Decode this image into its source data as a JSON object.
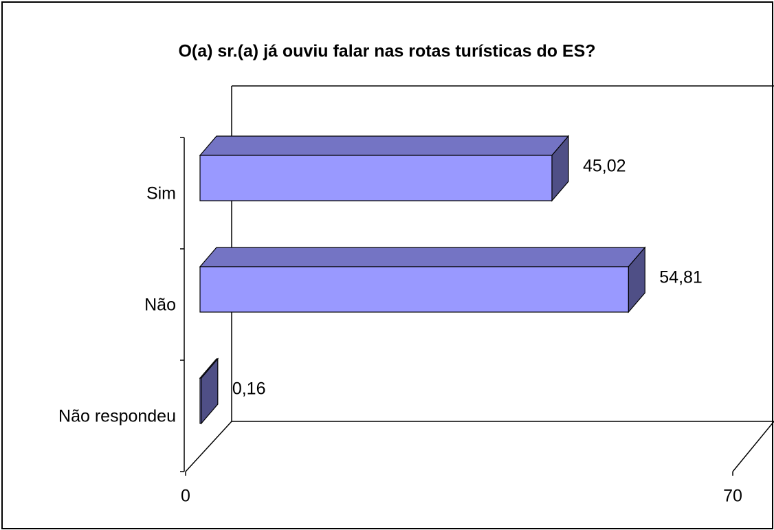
{
  "chart_data": {
    "type": "bar",
    "orientation": "horizontal",
    "title": "O(a) sr.(a) já ouviu falar nas rotas turísticas do ES?",
    "categories": [
      "Sim",
      "Não",
      "Não respondeu"
    ],
    "values": [
      45.02,
      54.81,
      0.16
    ],
    "value_labels": [
      "45,02",
      "54,81",
      "0,16"
    ],
    "color": "#9999ff",
    "xlim": [
      0,
      70
    ],
    "xticks": [
      0,
      70
    ]
  }
}
